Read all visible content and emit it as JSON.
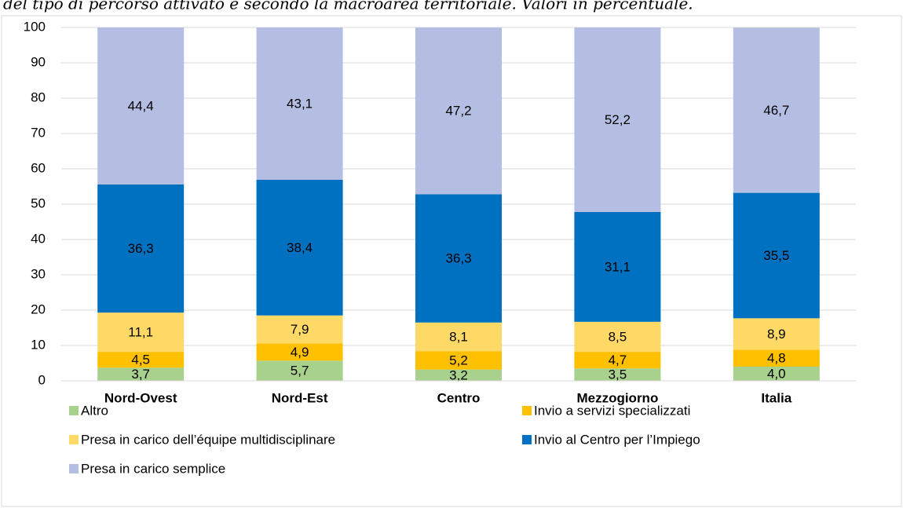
{
  "chart_data": {
    "type": "stacked_bar",
    "title": "del tipo di percorso attivato e secondo la macroarea territoriale. Valori in percentuale.",
    "categories": [
      "Nord-Ovest",
      "Nord-Est",
      "Centro",
      "Mezzogiorno",
      "Italia"
    ],
    "series": [
      {
        "name": "Altro",
        "color": "#a9d18e",
        "values": [
          3.7,
          5.7,
          3.2,
          3.5,
          4.0
        ],
        "value_labels": [
          "3,7",
          "5,7",
          "3,2",
          "3,5",
          "4,0"
        ]
      },
      {
        "name": "Invio a servizi specializzati",
        "color": "#ffc000",
        "values": [
          4.5,
          4.9,
          5.2,
          4.7,
          4.8
        ],
        "value_labels": [
          "4,5",
          "4,9",
          "5,2",
          "4,7",
          "4,8"
        ]
      },
      {
        "name": "Presa in carico dell’équipe multidisciplinare",
        "color": "#ffd966",
        "values": [
          11.1,
          7.9,
          8.1,
          8.5,
          8.9
        ],
        "value_labels": [
          "11,1",
          "7,9",
          "8,1",
          "8,5",
          "8,9"
        ]
      },
      {
        "name": "Invio al Centro per l’Impiego",
        "color": "#0070c0",
        "values": [
          36.3,
          38.4,
          36.3,
          31.1,
          35.5
        ],
        "value_labels": [
          "36,3",
          "38,4",
          "36,3",
          "31,1",
          "35,5"
        ]
      },
      {
        "name": "Presa in carico semplice",
        "color": "#b4bee2",
        "values": [
          44.4,
          43.1,
          47.2,
          52.2,
          46.7
        ],
        "value_labels": [
          "44,4",
          "43,1",
          "47,2",
          "52,2",
          "46,7"
        ]
      }
    ],
    "ylim": [
      0,
      100
    ],
    "yticks": [
      0,
      10,
      20,
      30,
      40,
      50,
      60,
      70,
      80,
      90,
      100
    ],
    "grid": true,
    "legend": "bottom"
  }
}
